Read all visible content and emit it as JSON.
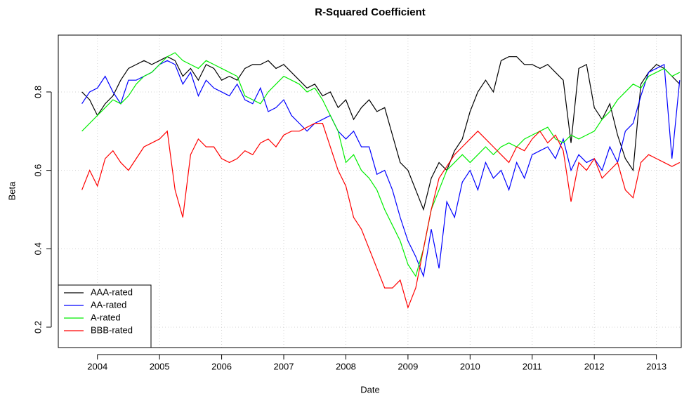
{
  "chart_data": {
    "type": "line",
    "title": "R-Squared Coefficient",
    "x_label": "Date",
    "y_label": "Beta",
    "x": [
      2003.75,
      2003.875,
      2004,
      2004.125,
      2004.25,
      2004.375,
      2004.5,
      2004.625,
      2004.75,
      2004.875,
      2005,
      2005.125,
      2005.25,
      2005.375,
      2005.5,
      2005.625,
      2005.75,
      2005.875,
      2006,
      2006.125,
      2006.25,
      2006.375,
      2006.5,
      2006.625,
      2006.75,
      2006.875,
      2007,
      2007.125,
      2007.25,
      2007.375,
      2007.5,
      2007.625,
      2007.75,
      2007.875,
      2008,
      2008.125,
      2008.25,
      2008.375,
      2008.5,
      2008.625,
      2008.75,
      2008.875,
      2009,
      2009.125,
      2009.25,
      2009.375,
      2009.5,
      2009.625,
      2009.75,
      2009.875,
      2010,
      2010.125,
      2010.25,
      2010.375,
      2010.5,
      2010.625,
      2010.75,
      2010.875,
      2011,
      2011.125,
      2011.25,
      2011.375,
      2011.5,
      2011.625,
      2011.75,
      2011.875,
      2012,
      2012.125,
      2012.25,
      2012.375,
      2012.5,
      2012.625,
      2012.75,
      2012.875,
      2013,
      2013.125,
      2013.25,
      2013.375
    ],
    "series": [
      {
        "name": "AAA-rated",
        "color": "#000000",
        "values": [
          0.8,
          0.78,
          0.74,
          0.77,
          0.79,
          0.83,
          0.86,
          0.87,
          0.88,
          0.87,
          0.88,
          0.89,
          0.88,
          0.84,
          0.86,
          0.83,
          0.87,
          0.86,
          0.83,
          0.84,
          0.83,
          0.86,
          0.87,
          0.87,
          0.88,
          0.86,
          0.87,
          0.85,
          0.83,
          0.81,
          0.82,
          0.79,
          0.8,
          0.76,
          0.78,
          0.73,
          0.76,
          0.78,
          0.75,
          0.76,
          0.69,
          0.62,
          0.6,
          0.55,
          0.5,
          0.58,
          0.62,
          0.6,
          0.65,
          0.68,
          0.75,
          0.8,
          0.83,
          0.8,
          0.88,
          0.89,
          0.89,
          0.87,
          0.87,
          0.86,
          0.87,
          0.85,
          0.83,
          0.67,
          0.86,
          0.87,
          0.76,
          0.73,
          0.77,
          0.69,
          0.63,
          0.6,
          0.82,
          0.85,
          0.87,
          0.86,
          0.84,
          0.82
        ]
      },
      {
        "name": "AA-rated",
        "color": "#0000ff",
        "values": [
          0.77,
          0.8,
          0.81,
          0.84,
          0.8,
          0.77,
          0.83,
          0.83,
          0.84,
          0.85,
          0.87,
          0.88,
          0.87,
          0.82,
          0.85,
          0.79,
          0.83,
          0.81,
          0.8,
          0.79,
          0.82,
          0.78,
          0.77,
          0.81,
          0.75,
          0.76,
          0.78,
          0.74,
          0.72,
          0.7,
          0.72,
          0.73,
          0.74,
          0.7,
          0.68,
          0.7,
          0.66,
          0.66,
          0.59,
          0.6,
          0.55,
          0.48,
          0.42,
          0.38,
          0.33,
          0.45,
          0.35,
          0.52,
          0.48,
          0.57,
          0.6,
          0.55,
          0.62,
          0.58,
          0.6,
          0.55,
          0.62,
          0.58,
          0.64,
          0.65,
          0.66,
          0.63,
          0.68,
          0.6,
          0.64,
          0.62,
          0.63,
          0.6,
          0.66,
          0.62,
          0.7,
          0.72,
          0.79,
          0.85,
          0.86,
          0.87,
          0.63,
          0.83
        ]
      },
      {
        "name": "A-rated",
        "color": "#00ee00",
        "values": [
          0.7,
          0.72,
          0.74,
          0.76,
          0.78,
          0.77,
          0.79,
          0.82,
          0.84,
          0.85,
          0.87,
          0.89,
          0.9,
          0.88,
          0.87,
          0.86,
          0.88,
          0.87,
          0.86,
          0.85,
          0.84,
          0.79,
          0.78,
          0.77,
          0.8,
          0.82,
          0.84,
          0.83,
          0.82,
          0.8,
          0.81,
          0.78,
          0.74,
          0.7,
          0.62,
          0.64,
          0.6,
          0.58,
          0.55,
          0.5,
          0.46,
          0.42,
          0.36,
          0.33,
          0.4,
          0.5,
          0.55,
          0.6,
          0.62,
          0.64,
          0.62,
          0.64,
          0.66,
          0.64,
          0.66,
          0.67,
          0.66,
          0.68,
          0.69,
          0.7,
          0.71,
          0.68,
          0.67,
          0.69,
          0.68,
          0.69,
          0.7,
          0.73,
          0.75,
          0.78,
          0.8,
          0.82,
          0.81,
          0.84,
          0.85,
          0.86,
          0.84,
          0.85
        ]
      },
      {
        "name": "BBB-rated",
        "color": "#ff0000",
        "values": [
          0.55,
          0.6,
          0.56,
          0.63,
          0.65,
          0.62,
          0.6,
          0.63,
          0.66,
          0.67,
          0.68,
          0.7,
          0.55,
          0.48,
          0.64,
          0.68,
          0.66,
          0.66,
          0.63,
          0.62,
          0.63,
          0.65,
          0.64,
          0.67,
          0.68,
          0.66,
          0.69,
          0.7,
          0.7,
          0.71,
          0.72,
          0.72,
          0.66,
          0.6,
          0.56,
          0.48,
          0.45,
          0.4,
          0.35,
          0.3,
          0.3,
          0.32,
          0.25,
          0.3,
          0.4,
          0.5,
          0.58,
          0.61,
          0.64,
          0.66,
          0.68,
          0.7,
          0.68,
          0.66,
          0.64,
          0.62,
          0.66,
          0.65,
          0.68,
          0.7,
          0.67,
          0.69,
          0.65,
          0.52,
          0.62,
          0.6,
          0.63,
          0.58,
          0.6,
          0.62,
          0.55,
          0.53,
          0.62,
          0.64,
          0.63,
          0.62,
          0.61,
          0.62
        ]
      }
    ],
    "xlim": [
      2003.37,
      2013.4
    ],
    "ylim": [
      0.148,
      0.945
    ],
    "xticks": [
      2004,
      2005,
      2006,
      2007,
      2008,
      2009,
      2010,
      2011,
      2012,
      2013
    ],
    "yticks": [
      0.2,
      0.4,
      0.6,
      0.8
    ],
    "grid": true,
    "legend": "bottomleft"
  }
}
